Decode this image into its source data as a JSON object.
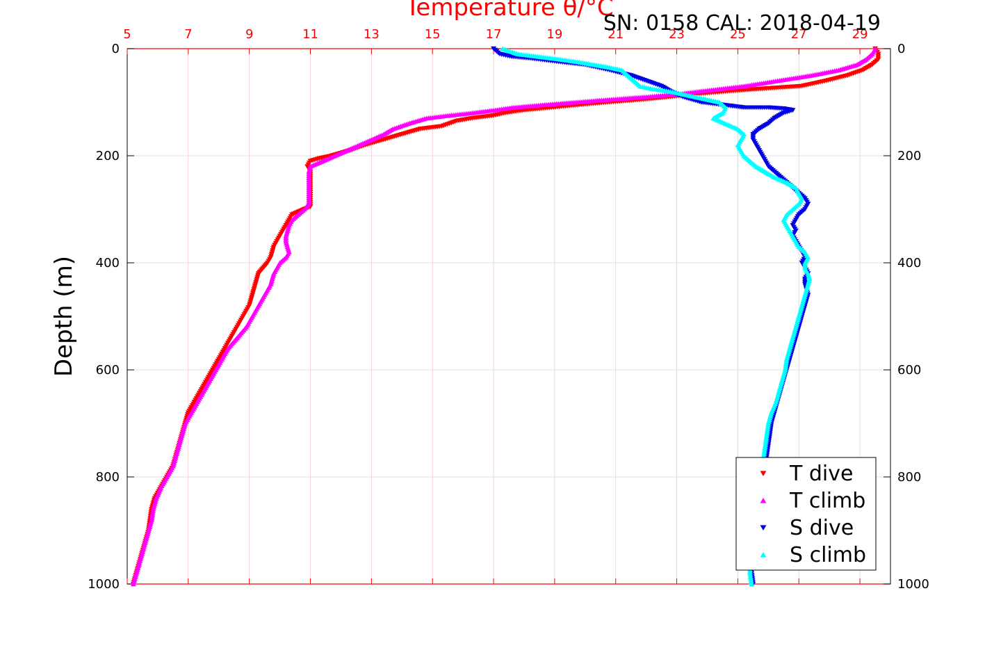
{
  "chart_data": {
    "type": "scatter",
    "title": "Temperature θ/°C",
    "subtitle": "SN: 0158  CAL: 2018-04-19",
    "ylabel": "Depth (m)",
    "xlabel_top": "Temperature θ/°C",
    "xlim": [
      5,
      30
    ],
    "ylim": [
      0,
      1000
    ],
    "y_reversed": true,
    "x_ticks": [
      "5",
      "7",
      "9",
      "11",
      "13",
      "15",
      "17",
      "19",
      "21",
      "23",
      "25",
      "27",
      "29"
    ],
    "y_ticks": [
      "0",
      "200",
      "400",
      "600",
      "800",
      "1000"
    ],
    "grid": true,
    "legend_position": "bottom-right",
    "colors": {
      "t_dive": "#ff0000",
      "t_climb": "#ff00ff",
      "s_dive": "#0000e6",
      "s_climb": "#00ffff",
      "axis_top": "#ff0000",
      "axis": "#000000",
      "grid": "#d9d9d9"
    },
    "series": [
      {
        "name": "T dive",
        "marker": "triangle-down",
        "points": [
          [
            29.5,
            0
          ],
          [
            29.6,
            10
          ],
          [
            29.6,
            20
          ],
          [
            29.4,
            30
          ],
          [
            29.1,
            40
          ],
          [
            28.6,
            50
          ],
          [
            27.9,
            60
          ],
          [
            27.1,
            70
          ],
          [
            25.8,
            75
          ],
          [
            24.6,
            80
          ],
          [
            23.6,
            85
          ],
          [
            22.8,
            90
          ],
          [
            21.9,
            95
          ],
          [
            20.8,
            100
          ],
          [
            19.8,
            105
          ],
          [
            18.9,
            110
          ],
          [
            18.0,
            115
          ],
          [
            17.4,
            120
          ],
          [
            17.0,
            125
          ],
          [
            16.3,
            130
          ],
          [
            15.8,
            135
          ],
          [
            15.3,
            145
          ],
          [
            14.6,
            150
          ],
          [
            14.0,
            160
          ],
          [
            13.4,
            170
          ],
          [
            12.8,
            180
          ],
          [
            12.3,
            190
          ],
          [
            11.7,
            200
          ],
          [
            11.3,
            205
          ],
          [
            11.0,
            210
          ],
          [
            10.9,
            220
          ],
          [
            11.0,
            230
          ],
          [
            11.0,
            260
          ],
          [
            11.0,
            295
          ],
          [
            10.8,
            300
          ],
          [
            10.6,
            305
          ],
          [
            10.4,
            310
          ],
          [
            10.3,
            320
          ],
          [
            10.2,
            330
          ],
          [
            10.1,
            340
          ],
          [
            10.0,
            350
          ],
          [
            9.9,
            360
          ],
          [
            9.8,
            370
          ],
          [
            9.75,
            380
          ],
          [
            9.7,
            390
          ],
          [
            9.6,
            400
          ],
          [
            9.45,
            410
          ],
          [
            9.3,
            420
          ],
          [
            9.25,
            430
          ],
          [
            9.2,
            440
          ],
          [
            9.1,
            460
          ],
          [
            9.0,
            480
          ],
          [
            8.8,
            500
          ],
          [
            8.6,
            520
          ],
          [
            8.4,
            540
          ],
          [
            8.2,
            560
          ],
          [
            8.0,
            580
          ],
          [
            7.8,
            600
          ],
          [
            7.6,
            620
          ],
          [
            7.4,
            640
          ],
          [
            7.2,
            660
          ],
          [
            7.0,
            680
          ],
          [
            6.9,
            700
          ],
          [
            6.8,
            720
          ],
          [
            6.7,
            740
          ],
          [
            6.6,
            760
          ],
          [
            6.5,
            780
          ],
          [
            6.3,
            800
          ],
          [
            6.1,
            820
          ],
          [
            5.9,
            840
          ],
          [
            5.8,
            860
          ],
          [
            5.75,
            880
          ],
          [
            5.7,
            900
          ],
          [
            5.6,
            920
          ],
          [
            5.5,
            940
          ],
          [
            5.4,
            960
          ],
          [
            5.3,
            980
          ],
          [
            5.2,
            1000
          ]
        ]
      },
      {
        "name": "T climb",
        "marker": "triangle-up",
        "points": [
          [
            29.5,
            0
          ],
          [
            29.4,
            10
          ],
          [
            29.2,
            20
          ],
          [
            28.9,
            30
          ],
          [
            28.3,
            40
          ],
          [
            27.4,
            50
          ],
          [
            26.3,
            60
          ],
          [
            25.2,
            70
          ],
          [
            24.0,
            78
          ],
          [
            23.0,
            85
          ],
          [
            22.0,
            90
          ],
          [
            20.8,
            95
          ],
          [
            19.7,
            100
          ],
          [
            18.6,
            105
          ],
          [
            17.6,
            110
          ],
          [
            17.0,
            115
          ],
          [
            16.3,
            120
          ],
          [
            15.5,
            125
          ],
          [
            14.8,
            130
          ],
          [
            14.2,
            140
          ],
          [
            13.7,
            150
          ],
          [
            13.4,
            160
          ],
          [
            13.0,
            170
          ],
          [
            12.6,
            180
          ],
          [
            12.2,
            190
          ],
          [
            11.8,
            200
          ],
          [
            11.4,
            210
          ],
          [
            11.0,
            220
          ],
          [
            10.95,
            230
          ],
          [
            10.95,
            260
          ],
          [
            10.95,
            290
          ],
          [
            10.8,
            300
          ],
          [
            10.6,
            310
          ],
          [
            10.4,
            320
          ],
          [
            10.3,
            330
          ],
          [
            10.25,
            340
          ],
          [
            10.2,
            350
          ],
          [
            10.2,
            360
          ],
          [
            10.25,
            370
          ],
          [
            10.3,
            380
          ],
          [
            10.2,
            390
          ],
          [
            10.0,
            400
          ],
          [
            9.9,
            410
          ],
          [
            9.8,
            420
          ],
          [
            9.7,
            440
          ],
          [
            9.5,
            460
          ],
          [
            9.3,
            480
          ],
          [
            9.1,
            500
          ],
          [
            8.9,
            520
          ],
          [
            8.6,
            540
          ],
          [
            8.3,
            560
          ],
          [
            8.1,
            580
          ],
          [
            7.9,
            600
          ],
          [
            7.7,
            620
          ],
          [
            7.5,
            640
          ],
          [
            7.3,
            660
          ],
          [
            7.1,
            680
          ],
          [
            6.9,
            700
          ],
          [
            6.8,
            720
          ],
          [
            6.7,
            740
          ],
          [
            6.6,
            760
          ],
          [
            6.5,
            780
          ],
          [
            6.3,
            800
          ],
          [
            6.1,
            820
          ],
          [
            5.95,
            840
          ],
          [
            5.85,
            860
          ],
          [
            5.8,
            880
          ],
          [
            5.7,
            900
          ],
          [
            5.6,
            920
          ],
          [
            5.5,
            940
          ],
          [
            5.4,
            960
          ],
          [
            5.3,
            980
          ],
          [
            5.2,
            1000
          ]
        ]
      },
      {
        "name": "S dive",
        "marker": "triangle-down",
        "points": [
          [
            17.0,
            0
          ],
          [
            17.1,
            5
          ],
          [
            17.2,
            10
          ],
          [
            17.6,
            15
          ],
          [
            18.2,
            18
          ],
          [
            19.2,
            25
          ],
          [
            20.0,
            30
          ],
          [
            20.8,
            40
          ],
          [
            21.5,
            50
          ],
          [
            22.0,
            60
          ],
          [
            22.5,
            70
          ],
          [
            22.8,
            80
          ],
          [
            23.2,
            90
          ],
          [
            23.8,
            100
          ],
          [
            24.5,
            105
          ],
          [
            25.2,
            110
          ],
          [
            26.0,
            110
          ],
          [
            26.5,
            112
          ],
          [
            26.8,
            115
          ],
          [
            26.5,
            120
          ],
          [
            26.2,
            130
          ],
          [
            26.0,
            140
          ],
          [
            25.7,
            150
          ],
          [
            25.5,
            160
          ],
          [
            25.5,
            170
          ],
          [
            25.6,
            180
          ],
          [
            25.7,
            190
          ],
          [
            25.8,
            200
          ],
          [
            25.9,
            210
          ],
          [
            26.0,
            220
          ],
          [
            26.2,
            230
          ],
          [
            26.4,
            240
          ],
          [
            26.6,
            250
          ],
          [
            26.8,
            260
          ],
          [
            27.0,
            270
          ],
          [
            27.2,
            280
          ],
          [
            27.3,
            290
          ],
          [
            27.2,
            300
          ],
          [
            27.0,
            310
          ],
          [
            26.9,
            320
          ],
          [
            26.8,
            330
          ],
          [
            26.9,
            340
          ],
          [
            26.8,
            350
          ],
          [
            26.9,
            360
          ],
          [
            27.0,
            370
          ],
          [
            27.1,
            380
          ],
          [
            27.2,
            390
          ],
          [
            27.1,
            400
          ],
          [
            27.2,
            410
          ],
          [
            27.3,
            420
          ],
          [
            27.2,
            430
          ],
          [
            27.2,
            440
          ],
          [
            27.3,
            460
          ],
          [
            27.2,
            480
          ],
          [
            27.1,
            500
          ],
          [
            27.0,
            520
          ],
          [
            26.9,
            540
          ],
          [
            26.8,
            560
          ],
          [
            26.7,
            580
          ],
          [
            26.6,
            600
          ],
          [
            26.5,
            620
          ],
          [
            26.4,
            640
          ],
          [
            26.3,
            660
          ],
          [
            26.2,
            680
          ],
          [
            26.1,
            700
          ],
          [
            26.05,
            720
          ],
          [
            26.0,
            740
          ],
          [
            25.95,
            760
          ],
          [
            25.9,
            780
          ],
          [
            25.8,
            800
          ],
          [
            25.75,
            820
          ],
          [
            25.7,
            840
          ],
          [
            25.65,
            860
          ],
          [
            25.6,
            880
          ],
          [
            25.55,
            900
          ],
          [
            25.5,
            920
          ],
          [
            25.5,
            940
          ],
          [
            25.45,
            960
          ],
          [
            25.45,
            980
          ],
          [
            25.5,
            1000
          ]
        ]
      },
      {
        "name": "S climb",
        "marker": "triangle-up",
        "points": [
          [
            17.3,
            0
          ],
          [
            17.8,
            10
          ],
          [
            18.5,
            15
          ],
          [
            19.2,
            20
          ],
          [
            19.8,
            25
          ],
          [
            20.3,
            30
          ],
          [
            20.8,
            35
          ],
          [
            21.2,
            40
          ],
          [
            21.4,
            50
          ],
          [
            21.6,
            60
          ],
          [
            21.8,
            70
          ],
          [
            22.2,
            75
          ],
          [
            22.8,
            80
          ],
          [
            23.2,
            85
          ],
          [
            23.6,
            90
          ],
          [
            24.0,
            95
          ],
          [
            24.4,
            100
          ],
          [
            24.6,
            110
          ],
          [
            24.5,
            120
          ],
          [
            24.2,
            130
          ],
          [
            24.6,
            140
          ],
          [
            25.0,
            150
          ],
          [
            25.2,
            160
          ],
          [
            25.1,
            170
          ],
          [
            25.0,
            180
          ],
          [
            25.1,
            190
          ],
          [
            25.2,
            200
          ],
          [
            25.4,
            210
          ],
          [
            25.6,
            220
          ],
          [
            25.9,
            230
          ],
          [
            26.2,
            240
          ],
          [
            26.6,
            250
          ],
          [
            26.9,
            260
          ],
          [
            27.0,
            270
          ],
          [
            27.1,
            280
          ],
          [
            27.0,
            290
          ],
          [
            26.8,
            300
          ],
          [
            26.6,
            310
          ],
          [
            26.5,
            320
          ],
          [
            26.6,
            330
          ],
          [
            26.7,
            340
          ],
          [
            26.8,
            350
          ],
          [
            26.9,
            360
          ],
          [
            27.0,
            370
          ],
          [
            27.2,
            380
          ],
          [
            27.3,
            390
          ],
          [
            27.2,
            400
          ],
          [
            27.2,
            410
          ],
          [
            27.3,
            420
          ],
          [
            27.35,
            430
          ],
          [
            27.3,
            440
          ],
          [
            27.2,
            460
          ],
          [
            27.1,
            480
          ],
          [
            27.0,
            500
          ],
          [
            26.9,
            520
          ],
          [
            26.8,
            540
          ],
          [
            26.7,
            560
          ],
          [
            26.6,
            580
          ],
          [
            26.55,
            600
          ],
          [
            26.45,
            620
          ],
          [
            26.35,
            640
          ],
          [
            26.25,
            660
          ],
          [
            26.1,
            680
          ],
          [
            26.0,
            700
          ],
          [
            25.95,
            720
          ],
          [
            25.9,
            740
          ],
          [
            25.85,
            760
          ],
          [
            25.8,
            780
          ],
          [
            25.75,
            800
          ],
          [
            25.7,
            820
          ],
          [
            25.65,
            840
          ],
          [
            25.6,
            860
          ],
          [
            25.55,
            880
          ],
          [
            25.5,
            900
          ],
          [
            25.5,
            920
          ],
          [
            25.45,
            940
          ],
          [
            25.4,
            960
          ],
          [
            25.4,
            980
          ],
          [
            25.45,
            1000
          ]
        ]
      }
    ]
  }
}
